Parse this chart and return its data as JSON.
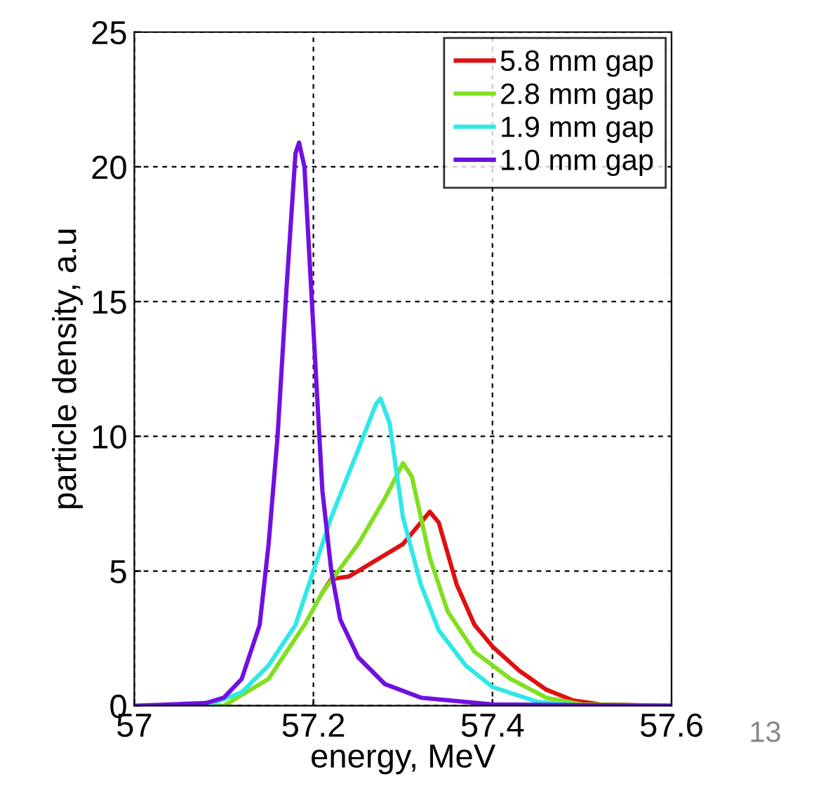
{
  "chart_data": {
    "type": "line",
    "xlabel": "energy, MeV",
    "ylabel": "particle density, a.u",
    "xlim": [
      57,
      57.6
    ],
    "ylim": [
      0,
      25
    ],
    "xticks": [
      57,
      57.2,
      57.4,
      57.6
    ],
    "yticks": [
      0,
      5,
      10,
      15,
      20,
      25
    ],
    "grid": true,
    "legend": "top right",
    "line_style": "solid",
    "marker": "none",
    "annotations": [
      "13"
    ],
    "series": [
      {
        "name": "5.8 mm gap",
        "color": "#e01010",
        "x": [
          57.21,
          57.22,
          57.24,
          57.27,
          57.3,
          57.32,
          57.33,
          57.34,
          57.36,
          57.38,
          57.4,
          57.43,
          57.46,
          57.49,
          57.52,
          57.6
        ],
        "values": [
          4.2,
          4.7,
          4.8,
          5.4,
          6.0,
          6.8,
          7.2,
          6.8,
          4.5,
          3.0,
          2.2,
          1.3,
          0.6,
          0.2,
          0.05,
          0
        ]
      },
      {
        "name": "2.8 mm gap",
        "color": "#80e020",
        "x": [
          57.0,
          57.1,
          57.15,
          57.19,
          57.21,
          57.25,
          57.28,
          57.3,
          57.31,
          57.33,
          57.35,
          57.38,
          57.42,
          57.46,
          57.5,
          57.6
        ],
        "values": [
          0,
          0,
          1,
          3,
          4.2,
          6,
          7.7,
          9.0,
          8.5,
          5.5,
          3.5,
          2.0,
          1.0,
          0.3,
          0.05,
          0
        ]
      },
      {
        "name": "1.9 mm gap",
        "color": "#30e8e8",
        "x": [
          57.0,
          57.08,
          57.12,
          57.15,
          57.18,
          57.2,
          57.22,
          57.25,
          57.27,
          57.275,
          57.285,
          57.3,
          57.32,
          57.34,
          57.37,
          57.4,
          57.45,
          57.5,
          57.6
        ],
        "values": [
          0,
          0,
          0.5,
          1.5,
          3,
          5,
          7,
          9.5,
          11.2,
          11.4,
          10.5,
          7,
          4.5,
          2.8,
          1.5,
          0.7,
          0.15,
          0,
          0
        ]
      },
      {
        "name": "1.0 mm gap",
        "color": "#7010e0",
        "x": [
          57.0,
          57.08,
          57.1,
          57.12,
          57.14,
          57.15,
          57.16,
          57.17,
          57.18,
          57.184,
          57.19,
          57.2,
          57.21,
          57.22,
          57.23,
          57.25,
          57.28,
          57.32,
          57.4,
          57.6
        ],
        "values": [
          0,
          0.1,
          0.3,
          1.0,
          3,
          6,
          10,
          15.5,
          20.5,
          20.9,
          20,
          14,
          8,
          5,
          3.2,
          1.8,
          0.8,
          0.3,
          0.05,
          0
        ]
      }
    ]
  }
}
